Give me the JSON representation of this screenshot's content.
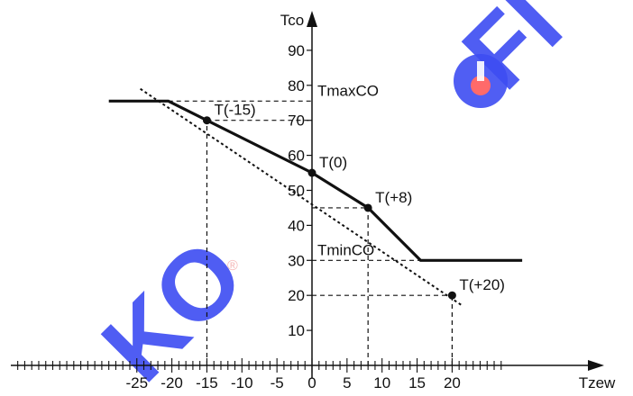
{
  "colors": {
    "line": "#111111",
    "watermark": "#3d4cf2",
    "watermark_red": "#ff4a4a",
    "background": "#ffffff"
  },
  "watermark": {
    "text_top": "FI",
    "text_bottom": "KO",
    "registered": "®"
  },
  "chart_data": {
    "type": "line",
    "title": "",
    "xlabel": "Tzew",
    "ylabel": "Tco",
    "xlim": [
      -29,
      30
    ],
    "ylim": [
      0,
      95
    ],
    "x_ticks": [
      -25,
      -20,
      -15,
      -10,
      -5,
      0,
      5,
      10,
      15,
      20
    ],
    "x_tick_labels": [
      "-25",
      "-20",
      "-15",
      "-10",
      "-5",
      "0",
      "5",
      "10",
      "15",
      "20"
    ],
    "x_minor_step": 1,
    "y_ticks": [
      10,
      20,
      30,
      40,
      50,
      60,
      70,
      80,
      90
    ],
    "y_tick_labels": [
      "10",
      "20",
      "30",
      "40",
      "50",
      "60",
      "70",
      "80",
      "90"
    ],
    "grid": false,
    "legend": "none",
    "series": [
      {
        "style": "solid",
        "points": [
          [
            -29,
            75.5
          ],
          [
            -20.5,
            75.5
          ],
          [
            -15,
            70
          ],
          [
            0,
            55
          ],
          [
            8,
            45
          ],
          [
            15.5,
            30
          ],
          [
            30,
            30
          ]
        ]
      },
      {
        "style": "dotted",
        "points": [
          [
            -24.5,
            79
          ],
          [
            21.5,
            17
          ]
        ]
      }
    ],
    "markers": [
      {
        "label": "T(-15)",
        "x": -15,
        "y": 70
      },
      {
        "label": "T(0)",
        "x": 0,
        "y": 55
      },
      {
        "label": "T(+8)",
        "x": 8,
        "y": 45
      },
      {
        "label": "T(+20)",
        "x": 20,
        "y": 20
      }
    ],
    "level_labels": [
      {
        "label": "TmaxCO",
        "y": 75.5
      },
      {
        "label": "TminCO",
        "y": 30
      }
    ],
    "guides": [
      {
        "kind": "h",
        "y": 75.5,
        "x_from": -20.5,
        "x_to": 0
      },
      {
        "kind": "h",
        "y": 70,
        "x_from": -15,
        "x_to": 0
      },
      {
        "kind": "v",
        "x": -15,
        "y_from": 0,
        "y_to": 70
      },
      {
        "kind": "h",
        "y": 45,
        "x_from": 0,
        "x_to": 8
      },
      {
        "kind": "v",
        "x": 8,
        "y_from": 0,
        "y_to": 45
      },
      {
        "kind": "h",
        "y": 30,
        "x_from": 0,
        "x_to": 15.5
      },
      {
        "kind": "h",
        "y": 20,
        "x_from": 0,
        "x_to": 20
      },
      {
        "kind": "v",
        "x": 20,
        "y_from": 0,
        "y_to": 20
      }
    ]
  }
}
